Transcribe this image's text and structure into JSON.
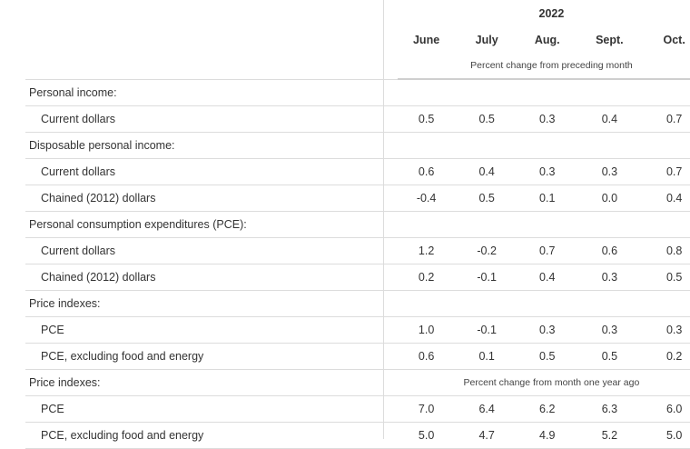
{
  "header": {
    "year": "2022",
    "months": [
      "June",
      "July",
      "Aug.",
      "Sept.",
      "Oct."
    ],
    "subheading": "Percent change from preceding month"
  },
  "rows": [
    {
      "label": "Personal income:",
      "indent": false,
      "values": []
    },
    {
      "label": "Current dollars",
      "indent": true,
      "values": [
        "0.5",
        "0.5",
        "0.3",
        "0.4",
        "0.7"
      ]
    },
    {
      "label": "Disposable personal income:",
      "indent": false,
      "values": []
    },
    {
      "label": "Current dollars",
      "indent": true,
      "values": [
        "0.6",
        "0.4",
        "0.3",
        "0.3",
        "0.7"
      ]
    },
    {
      "label": "Chained (2012) dollars",
      "indent": true,
      "values": [
        "-0.4",
        "0.5",
        "0.1",
        "0.0",
        "0.4"
      ]
    },
    {
      "label": "Personal consumption expenditures (PCE):",
      "indent": false,
      "values": []
    },
    {
      "label": "Current dollars",
      "indent": true,
      "values": [
        "1.2",
        "-0.2",
        "0.7",
        "0.6",
        "0.8"
      ]
    },
    {
      "label": "Chained (2012) dollars",
      "indent": true,
      "values": [
        "0.2",
        "-0.1",
        "0.4",
        "0.3",
        "0.5"
      ]
    },
    {
      "label": "Price indexes:",
      "indent": false,
      "values": []
    },
    {
      "label": "PCE",
      "indent": true,
      "values": [
        "1.0",
        "-0.1",
        "0.3",
        "0.3",
        "0.3"
      ]
    },
    {
      "label": "PCE, excluding food and energy",
      "indent": true,
      "values": [
        "0.6",
        "0.1",
        "0.5",
        "0.5",
        "0.2"
      ]
    },
    {
      "label": "Price indexes:",
      "indent": false,
      "values": [],
      "subheading": "Percent change from month one year ago"
    },
    {
      "label": "PCE",
      "indent": true,
      "values": [
        "7.0",
        "6.4",
        "6.2",
        "6.3",
        "6.0"
      ]
    },
    {
      "label": "PCE, excluding food and energy",
      "indent": true,
      "values": [
        "5.0",
        "4.7",
        "4.9",
        "5.2",
        "5.0"
      ]
    }
  ]
}
